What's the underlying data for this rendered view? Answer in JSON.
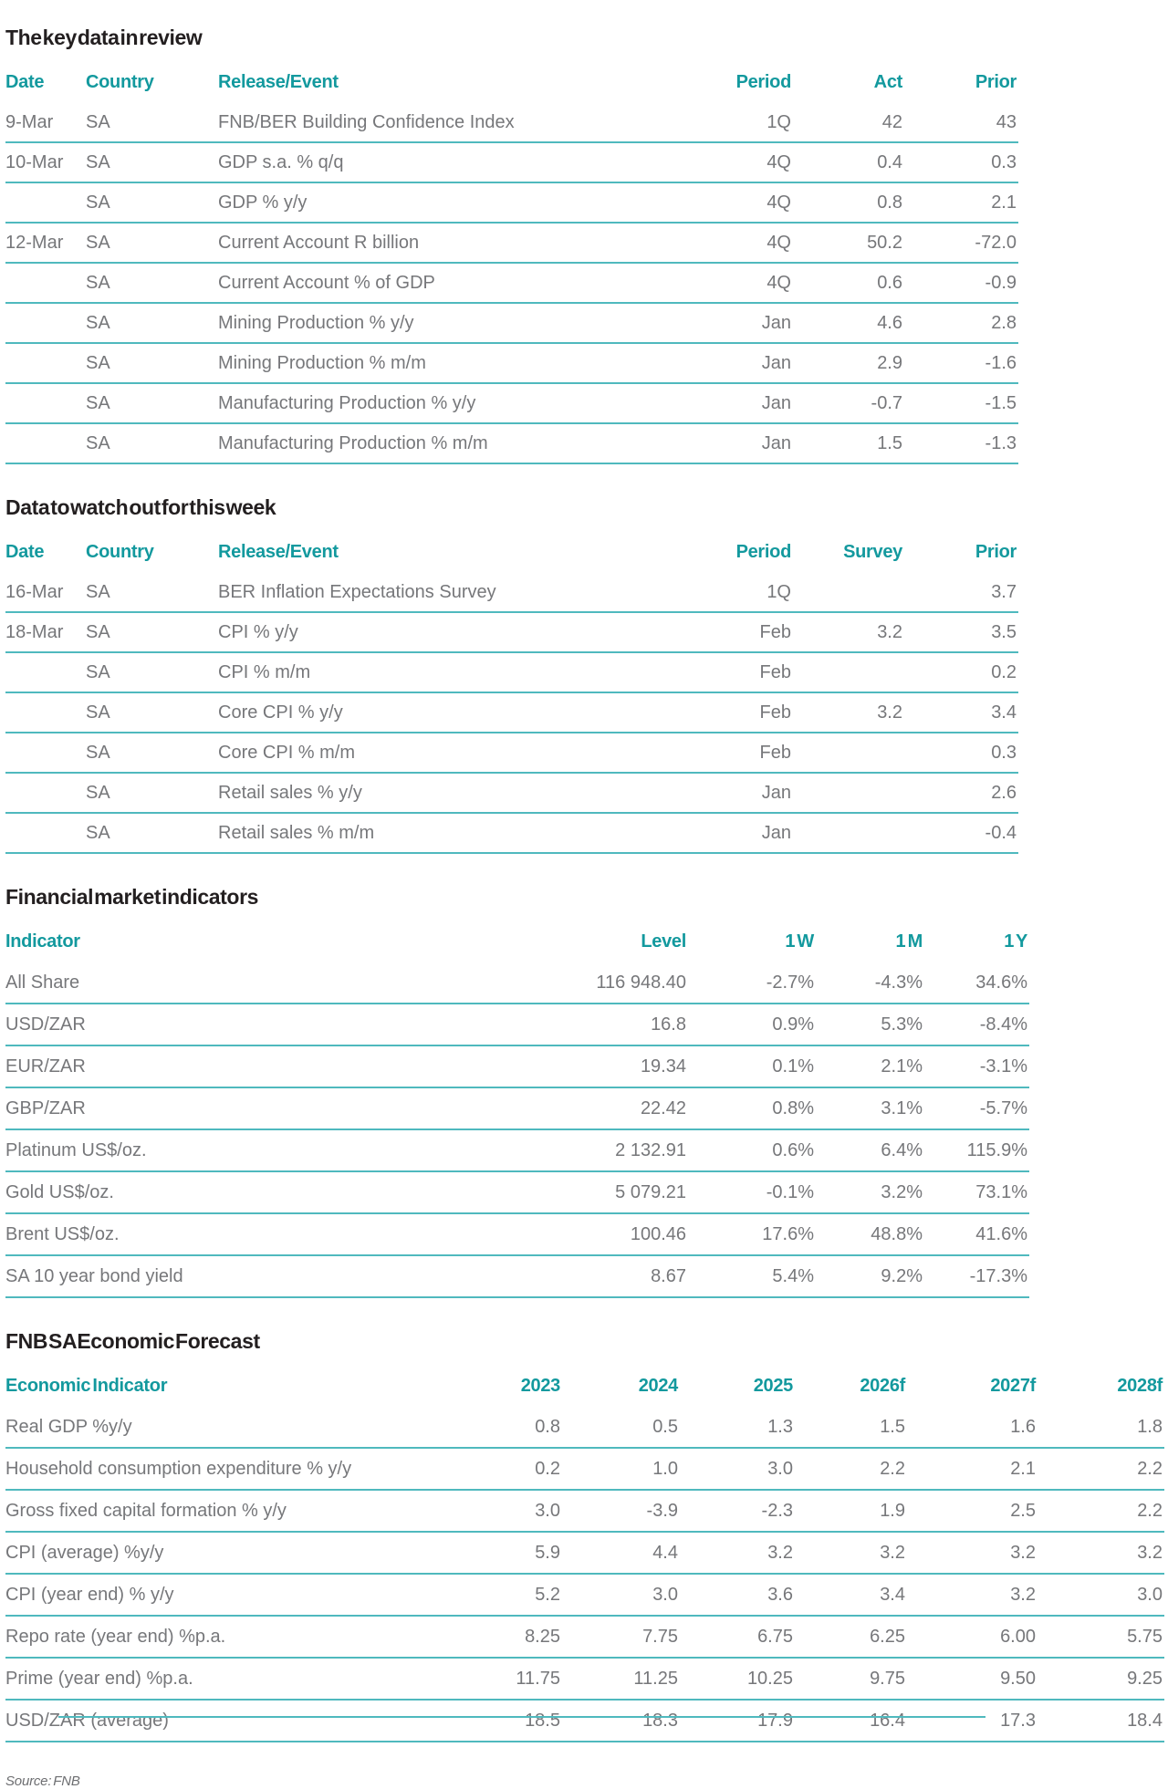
{
  "colors": {
    "header_teal": "#13999E",
    "rule_teal": "#4FB9BE",
    "body_text": "#76777A",
    "title_text": "#231F20"
  },
  "review": {
    "title": "The key data in review",
    "headers": [
      "Date",
      "Country",
      "Release/Event",
      "Period",
      "Act",
      "Prior"
    ],
    "rows": [
      [
        "9-Mar",
        "SA",
        "FNB/BER Building Confidence Index",
        "1Q",
        "42",
        "43"
      ],
      [
        "10-Mar",
        "SA",
        "GDP s.a. % q/q",
        "4Q",
        "0.4",
        "0.3"
      ],
      [
        "",
        "SA",
        "GDP % y/y",
        "4Q",
        "0.8",
        "2.1"
      ],
      [
        "12-Mar",
        "SA",
        "Current Account R billion",
        "4Q",
        "50.2",
        "-72.0"
      ],
      [
        "",
        "SA",
        "Current Account % of GDP",
        "4Q",
        "0.6",
        "-0.9"
      ],
      [
        "",
        "SA",
        "Mining Production % y/y",
        "Jan",
        "4.6",
        "2.8"
      ],
      [
        "",
        "SA",
        "Mining Production % m/m",
        "Jan",
        "2.9",
        "-1.6"
      ],
      [
        "",
        "SA",
        "Manufacturing Production % y/y",
        "Jan",
        "-0.7",
        "-1.5"
      ],
      [
        "",
        "SA",
        "Manufacturing Production % m/m",
        "Jan",
        "1.5",
        "-1.3"
      ]
    ]
  },
  "watch": {
    "title": "Data to watch out for this week",
    "headers": [
      "Date",
      "Country",
      "Release/Event",
      "Period",
      "Survey",
      "Prior"
    ],
    "rows": [
      [
        "16-Mar",
        "SA",
        "BER Inflation Expectations Survey",
        "1Q",
        "",
        "3.7"
      ],
      [
        "18-Mar",
        "SA",
        "CPI % y/y",
        "Feb",
        "3.2",
        "3.5"
      ],
      [
        "",
        "SA",
        "CPI % m/m",
        "Feb",
        "",
        "0.2"
      ],
      [
        "",
        "SA",
        "Core CPI % y/y",
        "Feb",
        "3.2",
        "3.4"
      ],
      [
        "",
        "SA",
        "Core CPI % m/m",
        "Feb",
        "",
        "0.3"
      ],
      [
        "",
        "SA",
        "Retail sales % y/y",
        "Jan",
        "",
        "2.6"
      ],
      [
        "",
        "SA",
        "Retail sales % m/m",
        "Jan",
        "",
        "-0.4"
      ]
    ]
  },
  "market": {
    "title": "Financial market indicators",
    "headers": [
      "Indicator",
      "Level",
      "1 W",
      "1 M",
      "1 Y"
    ],
    "rows": [
      [
        "All Share",
        "116 948.40",
        "-2.7%",
        "-4.3%",
        "34.6%"
      ],
      [
        "USD/ZAR",
        "16.8",
        "0.9%",
        "5.3%",
        "-8.4%"
      ],
      [
        "EUR/ZAR",
        "19.34",
        "0.1%",
        "2.1%",
        "-3.1%"
      ],
      [
        "GBP/ZAR",
        "22.42",
        "0.8%",
        "3.1%",
        "-5.7%"
      ],
      [
        "Platinum US$/oz.",
        "2 132.91",
        "0.6%",
        "6.4%",
        "115.9%"
      ],
      [
        "Gold US$/oz.",
        "5 079.21",
        "-0.1%",
        "3.2%",
        "73.1%"
      ],
      [
        "Brent US$/oz.",
        "100.46",
        "17.6%",
        "48.8%",
        "41.6%"
      ],
      [
        "SA 10 year bond yield",
        "8.67",
        "5.4%",
        "9.2%",
        "-17.3%"
      ]
    ]
  },
  "forecast": {
    "title": "FNB SA Economic Forecast",
    "headers": [
      "Economic Indicator",
      "2023",
      "2024",
      "2025",
      "2026f",
      "2027f",
      "2028f"
    ],
    "rows": [
      [
        "Real GDP %y/y",
        "0.8",
        "0.5",
        "1.3",
        "1.5",
        "1.6",
        "1.8"
      ],
      [
        "Household consumption expenditure % y/y",
        "0.2",
        "1.0",
        "3.0",
        "2.2",
        "2.1",
        "2.2"
      ],
      [
        "Gross fixed capital formation % y/y",
        "3.0",
        "-3.9",
        "-2.3",
        "1.9",
        "2.5",
        "2.2"
      ],
      [
        "CPI (average) %y/y",
        "5.9",
        "4.4",
        "3.2",
        "3.2",
        "3.2",
        "3.2"
      ],
      [
        "CPI (year end) % y/y",
        "5.2",
        "3.0",
        "3.6",
        "3.4",
        "3.2",
        "3.0"
      ],
      [
        "Repo rate (year end) %p.a.",
        "8.25",
        "7.75",
        "6.75",
        "6.25",
        "6.00",
        "5.75"
      ],
      [
        "Prime (year end) %p.a.",
        "11.75",
        "11.25",
        "10.25",
        "9.75",
        "9.50",
        "9.25"
      ],
      [
        "USD/ZAR (average)",
        "18.5",
        "18.3",
        "17.9",
        "16.4",
        "17.3",
        "18.4"
      ]
    ]
  },
  "source_note": "Source: FNB"
}
